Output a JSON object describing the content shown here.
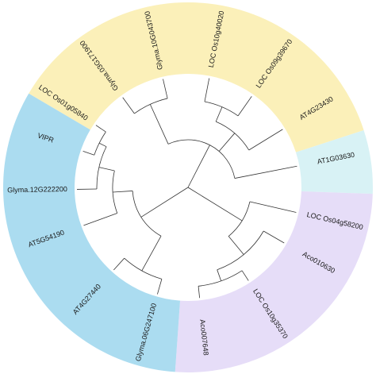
{
  "leaves": [
    "Glyma.03G171900",
    "Glyma.10G043700",
    "LOC Os10g40020",
    "LOC Os09g39670",
    "AT4G23430",
    "AT1G03630",
    "LOC Os04g58200",
    "Aco010630",
    "LOC Os10g35370",
    "Aco007648",
    "Glyma.06G247100",
    "AT4G27440",
    "AT5G54190",
    "Glyma.12G222200",
    "VIPR",
    "LOC Os01g05840"
  ]
}
